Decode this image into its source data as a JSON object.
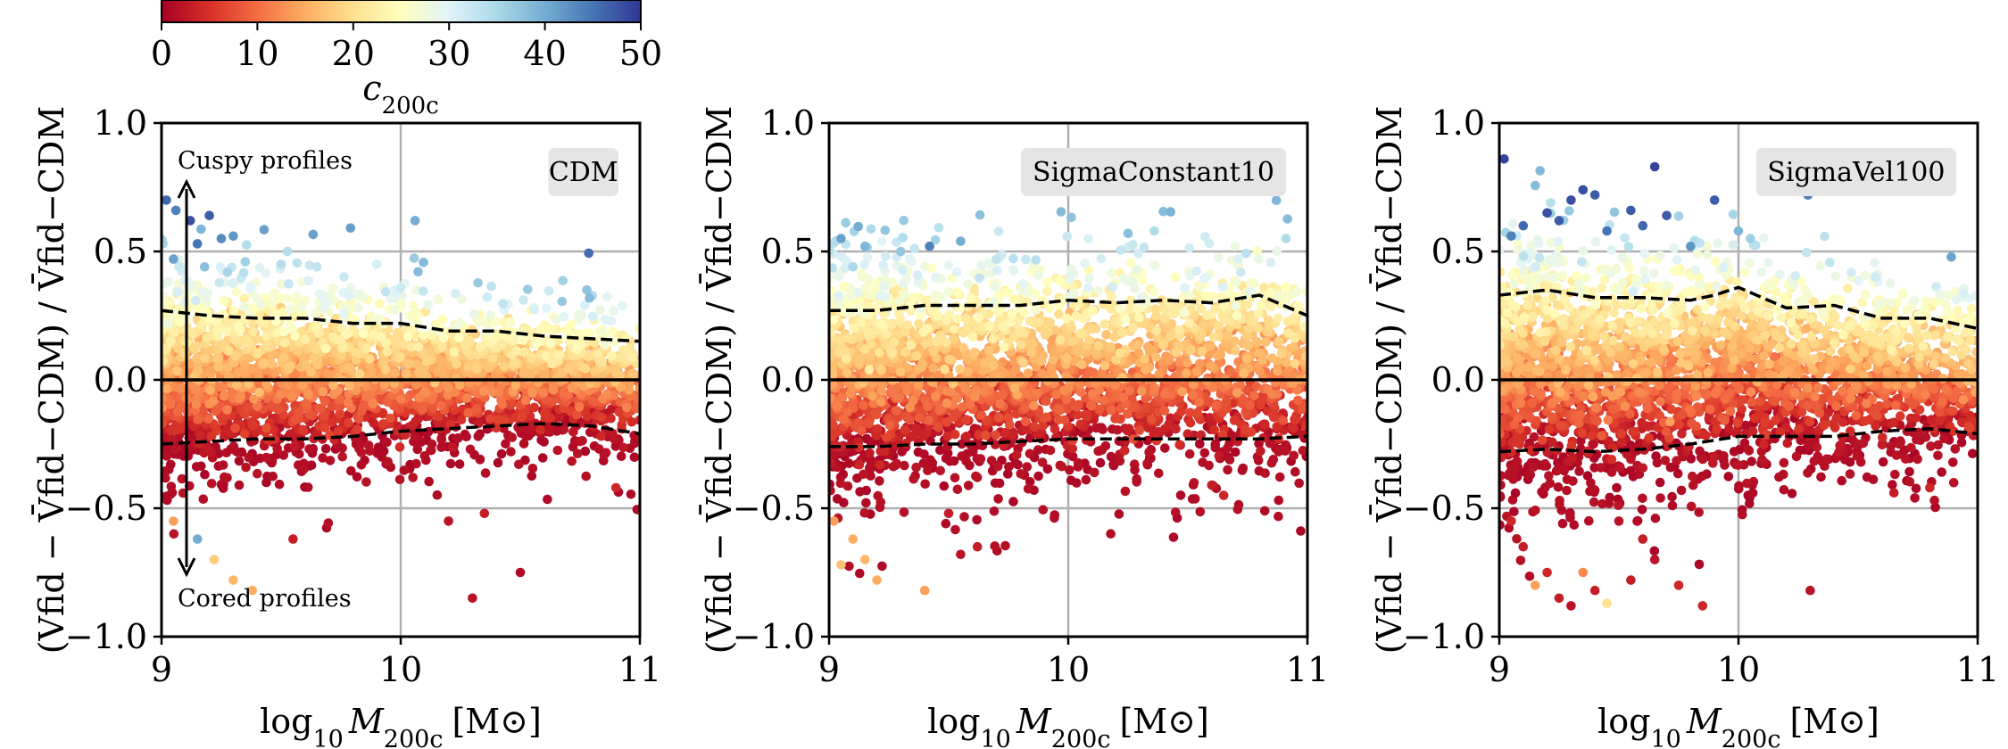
{
  "colorbar": {
    "label": "c200c",
    "ticks": [
      "0",
      "10",
      "20",
      "30",
      "40",
      "50"
    ],
    "range": [
      0,
      50
    ],
    "colors": [
      "#a50026",
      "#d73027",
      "#f46d43",
      "#fdae61",
      "#fee090",
      "#ffffbf",
      "#e0f3f8",
      "#abd9e9",
      "#74add1",
      "#4575b4",
      "#313695"
    ]
  },
  "annotations": {
    "cuspy": "Cuspy profiles",
    "cored": "Cored profiles"
  },
  "chart_data": [
    {
      "type": "scatter",
      "title": "CDM",
      "xlabel": "log10 M200c [M⊙]",
      "ylabel": "(Vfid − V̄fid−CDM) / V̄fid−CDM",
      "xlim": [
        9,
        11
      ],
      "ylim": [
        -1.0,
        1.0
      ],
      "xticks": [
        "9",
        "10",
        "11"
      ],
      "yticks": [
        "1.0",
        "0.5",
        "0.0",
        "−0.5",
        "−1.0"
      ],
      "grid": true,
      "upper_percentile": {
        "x": [
          9.0,
          9.2,
          9.4,
          9.6,
          9.8,
          10.0,
          10.2,
          10.4,
          10.6,
          10.8,
          11.0
        ],
        "y": [
          0.27,
          0.25,
          0.24,
          0.24,
          0.22,
          0.22,
          0.19,
          0.19,
          0.17,
          0.16,
          0.15
        ]
      },
      "lower_percentile": {
        "x": [
          9.0,
          9.2,
          9.4,
          9.6,
          9.8,
          10.0,
          10.2,
          10.4,
          10.6,
          10.8,
          11.0
        ],
        "y": [
          -0.25,
          -0.24,
          -0.23,
          -0.23,
          -0.22,
          -0.2,
          -0.19,
          -0.18,
          -0.17,
          -0.18,
          -0.21
        ]
      },
      "points": [
        {
          "x": 9.02,
          "y": 0.7,
          "c": 46
        },
        {
          "x": 9.06,
          "y": 0.66,
          "c": 44
        },
        {
          "x": 9.12,
          "y": 0.62,
          "c": 48
        },
        {
          "x": 9.2,
          "y": 0.64,
          "c": 47
        },
        {
          "x": 9.15,
          "y": 0.53,
          "c": 45
        },
        {
          "x": 9.25,
          "y": 0.55,
          "c": 43
        },
        {
          "x": 9.3,
          "y": 0.56,
          "c": 42
        },
        {
          "x": 10.06,
          "y": 0.62,
          "c": 40
        },
        {
          "x": 9.05,
          "y": 0.47,
          "c": 41
        },
        {
          "x": 9.18,
          "y": 0.44,
          "c": 38
        },
        {
          "x": 9.35,
          "y": 0.46,
          "c": 36
        },
        {
          "x": 9.5,
          "y": 0.45,
          "c": 34
        },
        {
          "x": 9.65,
          "y": 0.44,
          "c": 33
        },
        {
          "x": 9.9,
          "y": 0.45,
          "c": 31
        },
        {
          "x": 10.2,
          "y": -0.55,
          "c": 2
        },
        {
          "x": 10.35,
          "y": -0.52,
          "c": 3
        },
        {
          "x": 10.5,
          "y": -0.75,
          "c": 1
        },
        {
          "x": 10.3,
          "y": -0.85,
          "c": 2
        },
        {
          "x": 9.55,
          "y": -0.62,
          "c": 3
        },
        {
          "x": 10.9,
          "y": -0.42,
          "c": 4
        },
        {
          "x": 9.22,
          "y": -0.7,
          "c": 18
        },
        {
          "x": 9.3,
          "y": -0.78,
          "c": 16
        },
        {
          "x": 9.38,
          "y": -0.82,
          "c": 15
        },
        {
          "x": 9.15,
          "y": -0.62,
          "c": 40
        },
        {
          "x": 9.05,
          "y": -0.55,
          "c": 14
        }
      ]
    },
    {
      "type": "scatter",
      "title": "SigmaConstant10",
      "xlabel": "log10 M200c [M⊙]",
      "ylabel": "(Vfid − V̄fid−CDM) / V̄fid−CDM",
      "xlim": [
        9,
        11
      ],
      "ylim": [
        -1.0,
        1.0
      ],
      "xticks": [
        "9",
        "10",
        "11"
      ],
      "yticks": [
        "1.0",
        "0.5",
        "0.0",
        "−0.5",
        "−1.0"
      ],
      "grid": true,
      "upper_percentile": {
        "x": [
          9.0,
          9.2,
          9.4,
          9.6,
          9.8,
          10.0,
          10.2,
          10.4,
          10.6,
          10.8,
          11.0
        ],
        "y": [
          0.27,
          0.27,
          0.29,
          0.29,
          0.29,
          0.31,
          0.3,
          0.31,
          0.3,
          0.33,
          0.25
        ]
      },
      "lower_percentile": {
        "x": [
          9.0,
          9.2,
          9.4,
          9.6,
          9.8,
          10.0,
          10.2,
          10.4,
          10.6,
          10.8,
          11.0
        ],
        "y": [
          -0.26,
          -0.26,
          -0.25,
          -0.25,
          -0.24,
          -0.23,
          -0.23,
          -0.23,
          -0.23,
          -0.23,
          -0.22
        ]
      },
      "points": [
        {
          "x": 9.05,
          "y": 0.55,
          "c": 41
        },
        {
          "x": 9.15,
          "y": 0.52,
          "c": 39
        },
        {
          "x": 9.42,
          "y": 0.52,
          "c": 44
        },
        {
          "x": 9.55,
          "y": 0.54,
          "c": 40
        },
        {
          "x": 10.25,
          "y": 0.57,
          "c": 38
        },
        {
          "x": 9.3,
          "y": 0.5,
          "c": 37
        },
        {
          "x": 9.1,
          "y": 0.44,
          "c": 35
        },
        {
          "x": 9.7,
          "y": 0.47,
          "c": 33
        },
        {
          "x": 9.02,
          "y": -0.55,
          "c": 14
        },
        {
          "x": 9.1,
          "y": -0.62,
          "c": 15
        },
        {
          "x": 9.05,
          "y": -0.72,
          "c": 17
        },
        {
          "x": 9.15,
          "y": -0.7,
          "c": 16
        },
        {
          "x": 9.2,
          "y": -0.78,
          "c": 15
        },
        {
          "x": 9.4,
          "y": -0.82,
          "c": 14
        },
        {
          "x": 9.5,
          "y": -0.52,
          "c": 3
        },
        {
          "x": 9.55,
          "y": -0.68,
          "c": 2
        },
        {
          "x": 9.62,
          "y": -0.65,
          "c": 3
        },
        {
          "x": 10.65,
          "y": -0.45,
          "c": 4
        },
        {
          "x": 10.6,
          "y": -0.41,
          "c": 3
        }
      ]
    },
    {
      "type": "scatter",
      "title": "SigmaVel100",
      "xlabel": "log10 M200c [M⊙]",
      "ylabel": "(Vfid − V̄fid−CDM) / V̄fid−CDM",
      "xlim": [
        9,
        11
      ],
      "ylim": [
        -1.0,
        1.0
      ],
      "xticks": [
        "9",
        "10",
        "11"
      ],
      "yticks": [
        "1.0",
        "0.5",
        "0.0",
        "−0.5",
        "−1.0"
      ],
      "grid": true,
      "upper_percentile": {
        "x": [
          9.0,
          9.2,
          9.4,
          9.6,
          9.8,
          9.9,
          10.0,
          10.2,
          10.4,
          10.6,
          10.8,
          11.0
        ],
        "y": [
          0.33,
          0.35,
          0.32,
          0.32,
          0.31,
          0.33,
          0.36,
          0.28,
          0.29,
          0.24,
          0.24,
          0.2
        ]
      },
      "lower_percentile": {
        "x": [
          9.0,
          9.2,
          9.4,
          9.6,
          9.8,
          10.0,
          10.2,
          10.4,
          10.6,
          10.8,
          11.0
        ],
        "y": [
          -0.28,
          -0.27,
          -0.28,
          -0.27,
          -0.25,
          -0.22,
          -0.22,
          -0.22,
          -0.2,
          -0.19,
          -0.21
        ]
      },
      "points": [
        {
          "x": 9.02,
          "y": 0.86,
          "c": 49
        },
        {
          "x": 9.35,
          "y": 0.74,
          "c": 48
        },
        {
          "x": 9.4,
          "y": 0.72,
          "c": 47
        },
        {
          "x": 9.65,
          "y": 0.83,
          "c": 49
        },
        {
          "x": 9.9,
          "y": 0.7,
          "c": 47
        },
        {
          "x": 9.3,
          "y": 0.7,
          "c": 48
        },
        {
          "x": 9.2,
          "y": 0.65,
          "c": 48
        },
        {
          "x": 9.55,
          "y": 0.66,
          "c": 47
        },
        {
          "x": 9.1,
          "y": 0.6,
          "c": 46
        },
        {
          "x": 9.25,
          "y": 0.62,
          "c": 47
        },
        {
          "x": 9.6,
          "y": 0.6,
          "c": 46
        },
        {
          "x": 9.7,
          "y": 0.64,
          "c": 47
        },
        {
          "x": 9.05,
          "y": 0.56,
          "c": 44
        },
        {
          "x": 9.45,
          "y": 0.58,
          "c": 45
        },
        {
          "x": 9.8,
          "y": 0.52,
          "c": 42
        },
        {
          "x": 10.05,
          "y": 0.55,
          "c": 36
        },
        {
          "x": 10.0,
          "y": 0.58,
          "c": 39
        },
        {
          "x": 9.05,
          "y": -0.55,
          "c": 4
        },
        {
          "x": 9.1,
          "y": -0.65,
          "c": 3
        },
        {
          "x": 9.2,
          "y": -0.75,
          "c": 4
        },
        {
          "x": 9.25,
          "y": -0.85,
          "c": 3
        },
        {
          "x": 9.3,
          "y": -0.88,
          "c": 2
        },
        {
          "x": 9.4,
          "y": -0.82,
          "c": 3
        },
        {
          "x": 9.5,
          "y": -0.55,
          "c": 2
        },
        {
          "x": 9.6,
          "y": -0.62,
          "c": 3
        },
        {
          "x": 9.65,
          "y": -0.7,
          "c": 2
        },
        {
          "x": 9.55,
          "y": -0.78,
          "c": 3
        },
        {
          "x": 9.75,
          "y": -0.8,
          "c": 4
        },
        {
          "x": 9.85,
          "y": -0.88,
          "c": 4
        },
        {
          "x": 10.3,
          "y": -0.82,
          "c": 2
        },
        {
          "x": 9.35,
          "y": -0.75,
          "c": 12
        },
        {
          "x": 9.15,
          "y": -0.8,
          "c": 14
        },
        {
          "x": 9.45,
          "y": -0.87,
          "c": 20
        },
        {
          "x": 10.65,
          "y": -0.44,
          "c": 3
        },
        {
          "x": 10.8,
          "y": -0.42,
          "c": 4
        }
      ]
    }
  ]
}
